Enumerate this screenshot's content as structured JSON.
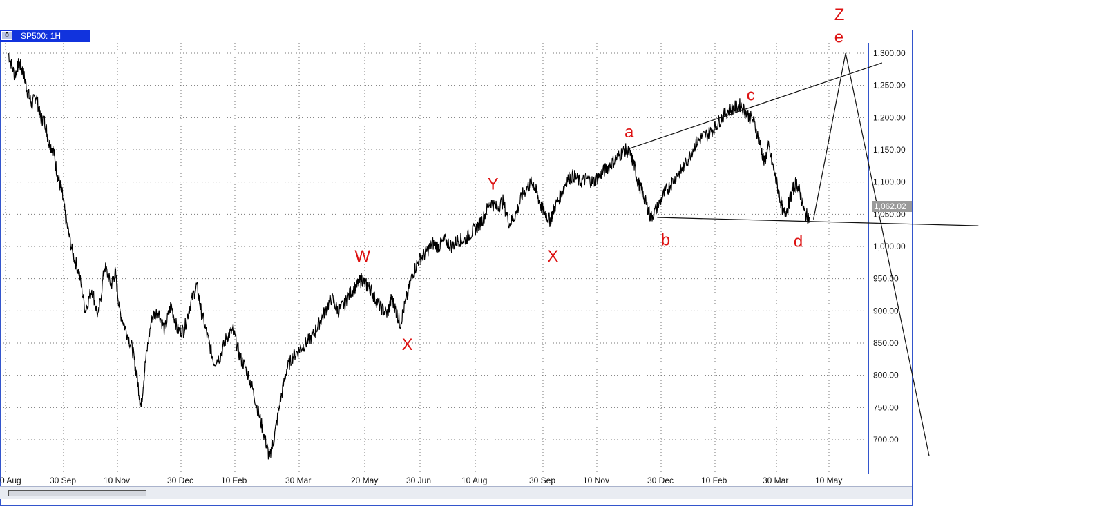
{
  "window": {
    "button_label": "0",
    "title": "SP500: 1H"
  },
  "chart_data": {
    "type": "line",
    "series": [
      {
        "values": [
          [
            0,
            1300
          ],
          [
            0.3,
            1265
          ],
          [
            0.5,
            1285
          ],
          [
            0.7,
            1270
          ],
          [
            0.9,
            1240
          ],
          [
            1.1,
            1220
          ],
          [
            1.3,
            1235
          ],
          [
            1.5,
            1200
          ],
          [
            1.7,
            1195
          ],
          [
            1.9,
            1160
          ],
          [
            2.1,
            1150
          ],
          [
            2.3,
            1110
          ],
          [
            2.5,
            1085
          ],
          [
            2.7,
            1040
          ],
          [
            3.0,
            990
          ],
          [
            3.3,
            960
          ],
          [
            3.6,
            900
          ],
          [
            3.9,
            935
          ],
          [
            4.2,
            890
          ],
          [
            4.5,
            970
          ],
          [
            4.8,
            940
          ],
          [
            5.0,
            960
          ],
          [
            5.2,
            900
          ],
          [
            5.5,
            870
          ],
          [
            5.8,
            840
          ],
          [
            6.0,
            800
          ],
          [
            6.2,
            750
          ],
          [
            6.4,
            820
          ],
          [
            6.7,
            890
          ],
          [
            7.0,
            900
          ],
          [
            7.3,
            870
          ],
          [
            7.6,
            910
          ],
          [
            7.9,
            870
          ],
          [
            8.2,
            870
          ],
          [
            8.5,
            910
          ],
          [
            8.8,
            940
          ],
          [
            9.0,
            900
          ],
          [
            9.3,
            860
          ],
          [
            9.6,
            820
          ],
          [
            9.9,
            830
          ],
          [
            10.2,
            860
          ],
          [
            10.5,
            870
          ],
          [
            10.8,
            830
          ],
          [
            11.1,
            810
          ],
          [
            11.4,
            780
          ],
          [
            11.7,
            740
          ],
          [
            12.0,
            700
          ],
          [
            12.2,
            670
          ],
          [
            12.4,
            700
          ],
          [
            12.7,
            760
          ],
          [
            13.0,
            810
          ],
          [
            13.3,
            830
          ],
          [
            13.6,
            840
          ],
          [
            13.9,
            850
          ],
          [
            14.2,
            860
          ],
          [
            14.5,
            880
          ],
          [
            14.8,
            900
          ],
          [
            15.1,
            920
          ],
          [
            15.4,
            900
          ],
          [
            15.7,
            910
          ],
          [
            16.0,
            930
          ],
          [
            16.3,
            940
          ],
          [
            16.5,
            950
          ],
          [
            16.7,
            940
          ],
          [
            16.9,
            935
          ],
          [
            17.1,
            920
          ],
          [
            17.4,
            905
          ],
          [
            17.7,
            895
          ],
          [
            17.9,
            920
          ],
          [
            18.1,
            900
          ],
          [
            18.3,
            880
          ],
          [
            18.6,
            920
          ],
          [
            18.9,
            960
          ],
          [
            19.2,
            980
          ],
          [
            19.5,
            990
          ],
          [
            19.8,
            1005
          ],
          [
            20.1,
            1000
          ],
          [
            20.4,
            1010
          ],
          [
            20.7,
            1000
          ],
          [
            21.0,
            1010
          ],
          [
            21.3,
            1010
          ],
          [
            21.6,
            1020
          ],
          [
            21.9,
            1030
          ],
          [
            22.2,
            1045
          ],
          [
            22.5,
            1070
          ],
          [
            22.8,
            1060
          ],
          [
            23.1,
            1070
          ],
          [
            23.4,
            1035
          ],
          [
            23.7,
            1050
          ],
          [
            24.0,
            1080
          ],
          [
            24.3,
            1095
          ],
          [
            24.5,
            1100
          ],
          [
            24.7,
            1080
          ],
          [
            24.9,
            1060
          ],
          [
            25.1,
            1050
          ],
          [
            25.3,
            1040
          ],
          [
            25.5,
            1060
          ],
          [
            25.8,
            1080
          ],
          [
            26.1,
            1105
          ],
          [
            26.4,
            1110
          ],
          [
            26.7,
            1100
          ],
          [
            27.0,
            1105
          ],
          [
            27.3,
            1100
          ],
          [
            27.6,
            1110
          ],
          [
            27.9,
            1120
          ],
          [
            28.2,
            1130
          ],
          [
            28.5,
            1140
          ],
          [
            28.8,
            1150
          ],
          [
            29.0,
            1145
          ],
          [
            29.2,
            1130
          ],
          [
            29.4,
            1100
          ],
          [
            29.6,
            1085
          ],
          [
            29.8,
            1065
          ],
          [
            30.0,
            1045
          ],
          [
            30.3,
            1060
          ],
          [
            30.6,
            1080
          ],
          [
            30.9,
            1095
          ],
          [
            31.2,
            1110
          ],
          [
            31.5,
            1120
          ],
          [
            31.8,
            1140
          ],
          [
            32.1,
            1160
          ],
          [
            32.4,
            1170
          ],
          [
            32.7,
            1175
          ],
          [
            33.0,
            1185
          ],
          [
            33.3,
            1200
          ],
          [
            33.6,
            1210
          ],
          [
            33.9,
            1215
          ],
          [
            34.2,
            1220
          ],
          [
            34.5,
            1205
          ],
          [
            34.8,
            1195
          ],
          [
            35.1,
            1160
          ],
          [
            35.3,
            1130
          ],
          [
            35.5,
            1155
          ],
          [
            35.8,
            1110
          ],
          [
            36.0,
            1080
          ],
          [
            36.2,
            1050
          ],
          [
            36.4,
            1060
          ],
          [
            36.6,
            1085
          ],
          [
            36.8,
            1100
          ],
          [
            37.0,
            1080
          ],
          [
            37.2,
            1050
          ],
          [
            37.4,
            1045
          ]
        ]
      }
    ],
    "x_tick_labels": [
      "0 Aug",
      "30 Sep",
      "10 Nov",
      "30 Dec",
      "10 Feb",
      "30 Mar",
      "20 May",
      "30 Jun",
      "10 Aug",
      "30 Sep",
      "10 Nov",
      "30 Dec",
      "10 Feb",
      "30 Mar",
      "10 May"
    ],
    "y_tick_labels": [
      "1,300.00",
      "1,250.00",
      "1,200.00",
      "1,150.00",
      "1,100.00",
      "1,050.00",
      "1,000.00",
      "950.00",
      "900.00",
      "850.00",
      "800.00",
      "750.00",
      "700.00"
    ],
    "y_ticks": [
      1300,
      1250,
      1200,
      1150,
      1100,
      1050,
      1000,
      950,
      900,
      850,
      800,
      750,
      700
    ],
    "ylim": [
      640,
      1330
    ],
    "last_price_label": "1,062.02",
    "wave_labels": [
      {
        "text": "W",
        "x": 16.4,
        "y": 985
      },
      {
        "text": "X",
        "x": 18.6,
        "y": 848
      },
      {
        "text": "Y",
        "x": 22.6,
        "y": 1097
      },
      {
        "text": "X",
        "x": 25.4,
        "y": 985
      },
      {
        "text": "a",
        "x": 29.0,
        "y": 1178
      },
      {
        "text": "b",
        "x": 30.7,
        "y": 1010
      },
      {
        "text": "c",
        "x": 34.7,
        "y": 1235
      },
      {
        "text": "d",
        "x": 36.9,
        "y": 1008
      },
      {
        "text": "e",
        "x": 38.8,
        "y": 1325
      },
      {
        "text": "Z",
        "x": 38.8,
        "y": 1360
      }
    ],
    "trendlines": [
      {
        "from": [
          29.0,
          1152
        ],
        "to": [
          40.8,
          1285
        ]
      },
      {
        "from": [
          30.3,
          1045
        ],
        "to": [
          45.3,
          1032
        ]
      },
      {
        "from": [
          37.6,
          1042
        ],
        "to": [
          39.1,
          1300
        ]
      },
      {
        "from": [
          39.1,
          1300
        ],
        "to": [
          43.0,
          675
        ]
      }
    ],
    "xlim": [
      0,
      38
    ]
  }
}
